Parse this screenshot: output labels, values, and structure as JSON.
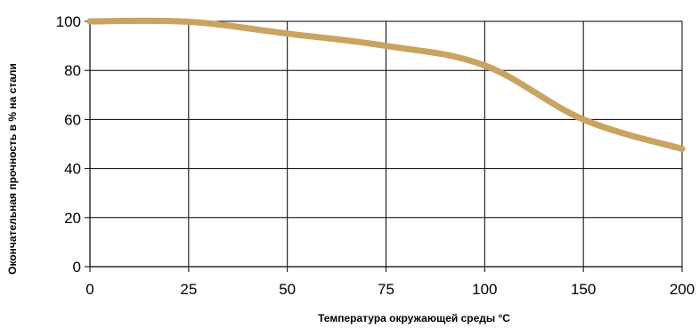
{
  "chart_data": {
    "type": "line",
    "xlabel": "Температура окружающей среды °C",
    "ylabel": "Окончательная прочность в % на стали",
    "x_categories": [
      "0",
      "25",
      "50",
      "75",
      "100",
      "150",
      "200"
    ],
    "y_ticks": [
      "0",
      "20",
      "40",
      "60",
      "80",
      "100"
    ],
    "ylim": [
      0,
      100
    ],
    "grid": true,
    "legend": "none",
    "series": [
      {
        "x": [
          "0",
          "25",
          "50",
          "75",
          "100",
          "150",
          "200"
        ],
        "values": [
          100,
          99.8,
          95,
          90,
          82,
          60,
          48
        ],
        "color": "#C9A461"
      }
    ]
  }
}
